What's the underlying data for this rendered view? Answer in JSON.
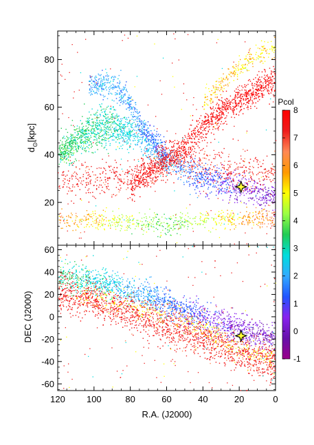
{
  "chart_data": [
    {
      "type": "scatter",
      "panel": "top",
      "ylabel": "d",
      "ylabel_sub": "⊙",
      "ylabel_unit": "[kpc]",
      "xlim": [
        120,
        0
      ],
      "ylim": [
        2,
        92
      ],
      "yticks": [
        20,
        40,
        60,
        80
      ],
      "yticklabels": [
        "20",
        "40",
        "60",
        "80"
      ],
      "grid": false,
      "point_color_by": "Pcol",
      "stars": [
        {
          "x": 19,
          "y": 26.5
        }
      ],
      "streams": [
        {
          "x": [
            120,
            100,
            80,
            60,
            40,
            20,
            0
          ],
          "y": [
            40,
            48,
            50,
            38,
            30,
            26,
            22
          ],
          "spread": 3,
          "pcol": [
            3.5,
            3.3,
            2.6,
            1.8,
            1.2,
            0.4,
            0.1
          ],
          "n": 1300
        },
        {
          "x": [
            103,
            92,
            84,
            78,
            74,
            66,
            60
          ],
          "y": [
            69,
            70,
            66,
            58,
            52,
            45,
            40
          ],
          "spread": 2.5,
          "pcol": [
            2.0,
            2.0,
            2.0,
            1.8,
            1.6,
            1.4,
            1.2
          ],
          "n": 550
        },
        {
          "x": [
            120,
            110,
            100,
            90,
            86,
            80
          ],
          "y": [
            40,
            48,
            53,
            56,
            52,
            47
          ],
          "spread": 3,
          "pcol": [
            3.6,
            3.4,
            3.2,
            3.0,
            2.8,
            2.6
          ],
          "n": 450
        },
        {
          "x": [
            80,
            70,
            60,
            50,
            40,
            30,
            20,
            10,
            0
          ],
          "y": [
            28,
            33,
            38,
            44,
            52,
            58,
            63,
            68,
            72
          ],
          "spread": 3,
          "pcol": [
            7.5,
            7.6,
            7.6,
            7.7,
            7.7,
            7.8,
            7.8,
            7.8,
            7.8
          ],
          "n": 1200
        },
        {
          "x": [
            40,
            30,
            20,
            10,
            0
          ],
          "y": [
            62,
            70,
            77,
            82,
            85
          ],
          "spread": 2,
          "pcol": [
            5.5,
            5.4,
            5.3,
            5.2,
            5.1
          ],
          "n": 250
        },
        {
          "x": [
            120,
            90,
            70,
            60,
            50,
            40,
            20,
            0
          ],
          "y": [
            30,
            30,
            33,
            37,
            38,
            36,
            33,
            32
          ],
          "spread": 4,
          "pcol": [
            7.3,
            7.3,
            7.3,
            7.2,
            7.2,
            7.2,
            7.2,
            7.2
          ],
          "n": 750
        },
        {
          "x": [
            120,
            90,
            60,
            30,
            0
          ],
          "y": [
            13,
            12,
            11,
            13,
            14
          ],
          "spread": 2,
          "pcol": [
            6.2,
            4.8,
            3.8,
            5.0,
            6.5
          ],
          "n": 650
        }
      ]
    },
    {
      "type": "scatter",
      "panel": "bottom",
      "xlabel": "R.A. (J2000)",
      "ylabel": "DEC (J2000)",
      "xlim": [
        120,
        0
      ],
      "ylim": [
        -66,
        64
      ],
      "xticks": [
        120,
        100,
        80,
        60,
        40,
        20,
        0
      ],
      "xticklabels": [
        "120",
        "100",
        "80",
        "60",
        "40",
        "20",
        "0"
      ],
      "yticks": [
        -60,
        -40,
        -20,
        0,
        20,
        40,
        60
      ],
      "yticklabels": [
        "-60",
        "-40",
        "-20",
        "0",
        "20",
        "40",
        "60"
      ],
      "grid": false,
      "point_color_by": "Pcol",
      "stars": [
        {
          "x": 19,
          "y": -17
        }
      ],
      "streams": [
        {
          "x": [
            120,
            100,
            80,
            60,
            40,
            20,
            0
          ],
          "y": [
            37,
            32,
            24,
            12,
            0,
            -10,
            -20
          ],
          "spread": 6,
          "pcol": [
            3.4,
            2.8,
            2.1,
            1.5,
            0.8,
            0.3,
            0.1
          ],
          "n": 1500
        },
        {
          "x": [
            120,
            100,
            80,
            60,
            40,
            20,
            0
          ],
          "y": [
            22,
            14,
            4,
            -8,
            -20,
            -32,
            -42
          ],
          "spread": 8,
          "pcol": [
            7.4,
            7.4,
            7.3,
            7.3,
            7.2,
            7.2,
            7.2
          ],
          "n": 1600
        },
        {
          "x": [
            110,
            80,
            50,
            20,
            0
          ],
          "y": [
            25,
            10,
            -5,
            -25,
            -38
          ],
          "spread": 6,
          "pcol": [
            5.2,
            5.1,
            5.1,
            5.0,
            5.0
          ],
          "n": 300
        }
      ]
    }
  ],
  "colorbar": {
    "title": "Pcol",
    "min": -1,
    "max": 8,
    "ticks": [
      "8",
      "7",
      "6",
      "5",
      "4",
      "3",
      "2",
      "1",
      "0",
      "-1"
    ],
    "colors": [
      "#ff0000",
      "#ee1c1c",
      "#ff8855",
      "#ff9900",
      "#ffff00",
      "#99ff44",
      "#22cc55",
      "#00dddd",
      "#33aaff",
      "#2255ff",
      "#8822ee",
      "#6611aa",
      "#99008a"
    ]
  }
}
